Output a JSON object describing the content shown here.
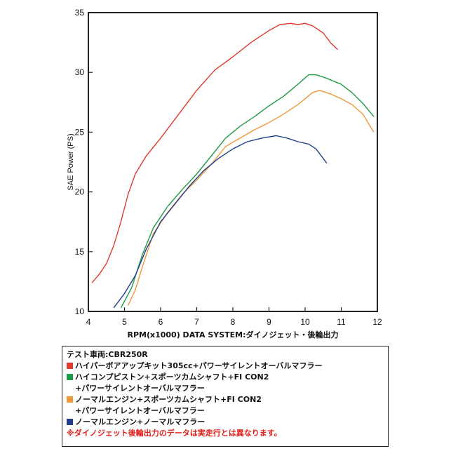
{
  "chart_data": {
    "type": "line",
    "ylabel": "SAE Power (PS)",
    "xlabel": "RPM(x1000) DATA SYSTEM:ダイノジェット・後輪出力",
    "xlim": [
      4,
      12
    ],
    "ylim": [
      10,
      35
    ],
    "xticks": [
      "4",
      "5",
      "6",
      "7",
      "8",
      "9",
      "10",
      "11",
      "12"
    ],
    "yticks": [
      "10",
      "15",
      "20",
      "25",
      "30",
      "35"
    ],
    "grid": false,
    "series": [
      {
        "name": "ハイパーボアアップキット305cc+パワーサイレントオーバルマフラー",
        "color": "#e03a2f",
        "points": [
          [
            4.1,
            12.4
          ],
          [
            4.3,
            13.1
          ],
          [
            4.5,
            14.0
          ],
          [
            4.7,
            15.5
          ],
          [
            4.9,
            17.5
          ],
          [
            5.1,
            19.8
          ],
          [
            5.3,
            21.5
          ],
          [
            5.6,
            23.0
          ],
          [
            6.0,
            24.5
          ],
          [
            6.5,
            26.5
          ],
          [
            7.0,
            28.5
          ],
          [
            7.5,
            30.2
          ],
          [
            8.0,
            31.3
          ],
          [
            8.5,
            32.5
          ],
          [
            9.0,
            33.5
          ],
          [
            9.3,
            34.0
          ],
          [
            9.6,
            34.1
          ],
          [
            9.8,
            34.0
          ],
          [
            10.0,
            34.1
          ],
          [
            10.2,
            33.9
          ],
          [
            10.5,
            33.3
          ],
          [
            10.7,
            32.5
          ],
          [
            10.9,
            31.9
          ]
        ]
      },
      {
        "name": "ハイコンプピストン+スポーツカムシャフト+FI CON2\n+パワーサイレントオーバルマフラー",
        "color": "#1e9c45",
        "points": [
          [
            4.9,
            10.3
          ],
          [
            5.2,
            12.0
          ],
          [
            5.5,
            14.8
          ],
          [
            5.8,
            17.0
          ],
          [
            6.2,
            18.8
          ],
          [
            6.6,
            20.2
          ],
          [
            7.0,
            21.5
          ],
          [
            7.4,
            23.0
          ],
          [
            7.8,
            24.5
          ],
          [
            8.2,
            25.5
          ],
          [
            8.6,
            26.3
          ],
          [
            9.0,
            27.2
          ],
          [
            9.4,
            28.0
          ],
          [
            9.8,
            29.0
          ],
          [
            10.1,
            29.8
          ],
          [
            10.3,
            29.8
          ],
          [
            10.6,
            29.5
          ],
          [
            11.0,
            29.0
          ],
          [
            11.3,
            28.3
          ],
          [
            11.6,
            27.4
          ],
          [
            11.9,
            26.3
          ]
        ]
      },
      {
        "name": "ノーマルエンジン+スポーツカムシャフト+FI CON2\n+パワーサイレントオーバルマフラー",
        "color": "#f0963a",
        "points": [
          [
            5.1,
            10.5
          ],
          [
            5.3,
            11.8
          ],
          [
            5.5,
            13.8
          ],
          [
            5.8,
            16.5
          ],
          [
            6.2,
            18.3
          ],
          [
            6.6,
            19.8
          ],
          [
            7.0,
            21.0
          ],
          [
            7.4,
            22.3
          ],
          [
            7.8,
            23.8
          ],
          [
            8.2,
            24.5
          ],
          [
            8.6,
            25.2
          ],
          [
            9.0,
            25.8
          ],
          [
            9.4,
            26.5
          ],
          [
            9.8,
            27.3
          ],
          [
            10.2,
            28.3
          ],
          [
            10.4,
            28.5
          ],
          [
            10.7,
            28.2
          ],
          [
            11.0,
            27.8
          ],
          [
            11.3,
            27.3
          ],
          [
            11.6,
            26.5
          ],
          [
            11.8,
            25.5
          ],
          [
            11.9,
            25.0
          ]
        ]
      },
      {
        "name": "ノーマルエンジン+ノーマルマフラー",
        "color": "#1f3f8a",
        "points": [
          [
            4.7,
            10.3
          ],
          [
            5.0,
            11.5
          ],
          [
            5.3,
            13.0
          ],
          [
            5.6,
            15.2
          ],
          [
            6.0,
            17.5
          ],
          [
            6.4,
            19.0
          ],
          [
            6.8,
            20.5
          ],
          [
            7.2,
            21.8
          ],
          [
            7.6,
            22.8
          ],
          [
            8.0,
            23.6
          ],
          [
            8.4,
            24.2
          ],
          [
            8.8,
            24.5
          ],
          [
            9.2,
            24.7
          ],
          [
            9.5,
            24.5
          ],
          [
            9.8,
            24.2
          ],
          [
            10.1,
            24.0
          ],
          [
            10.3,
            23.6
          ],
          [
            10.5,
            22.8
          ],
          [
            10.6,
            22.4
          ]
        ]
      }
    ]
  },
  "legend": {
    "title": "テスト車両:CBR250R",
    "note": "※ダイノジェット後輪出力のデータは実走行とは異なります。"
  }
}
